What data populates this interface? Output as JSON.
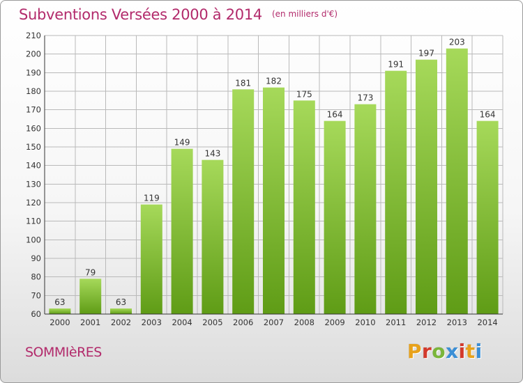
{
  "header": {
    "title": "Subventions Versées 2000 à 2014",
    "subtitle": "(en milliers d'€)"
  },
  "footer": {
    "commune": "SOMMIèRES",
    "logo": "Proxiti",
    "logo_colors": [
      "#e8a21b",
      "#d33a2c",
      "#7bb63a",
      "#3b8fd6",
      "#d33a2c",
      "#e8a21b",
      "#3b8fd6"
    ]
  },
  "colors": {
    "bar_light": "#a6d95a",
    "bar_dark": "#5f9c16",
    "grid": "#b9b9b9",
    "title": "#b22a6b"
  },
  "chart_data": {
    "type": "bar",
    "categories": [
      "2000",
      "2001",
      "2002",
      "2003",
      "2004",
      "2005",
      "2006",
      "2007",
      "2008",
      "2009",
      "2010",
      "2011",
      "2012",
      "2013",
      "2014"
    ],
    "values": [
      63,
      79,
      63,
      119,
      149,
      143,
      181,
      182,
      175,
      164,
      173,
      191,
      197,
      203,
      164
    ],
    "ylim": [
      60,
      210
    ],
    "yticks": [
      60,
      70,
      80,
      90,
      100,
      110,
      120,
      130,
      140,
      150,
      160,
      170,
      180,
      190,
      200,
      210
    ],
    "grid": true
  }
}
